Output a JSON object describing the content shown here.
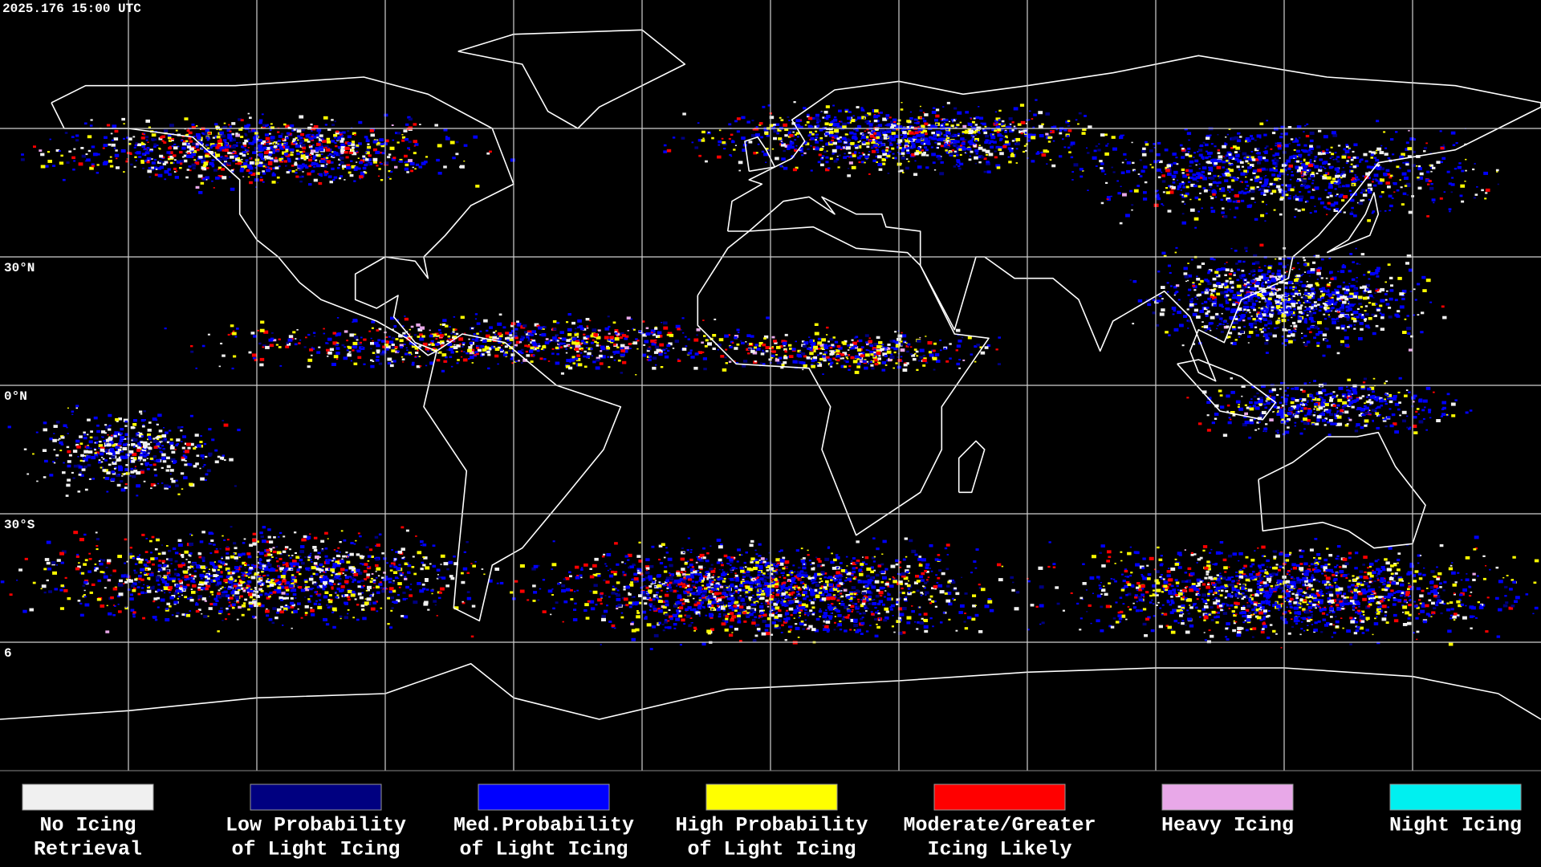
{
  "timestamp": "2025.176 15:00 UTC",
  "grid_labels": [
    "30°N",
    "0°N",
    "30°S",
    "6"
  ],
  "legend": [
    {
      "color": "#f0f0f0",
      "lines": [
        "No Icing",
        "Retrieval"
      ]
    },
    {
      "color": "#000080",
      "lines": [
        "Low Probability",
        "of Light Icing"
      ]
    },
    {
      "color": "#0000ff",
      "lines": [
        "Med.Probability",
        "of Light Icing"
      ]
    },
    {
      "color": "#ffff00",
      "lines": [
        "High Probability",
        "of Light Icing"
      ]
    },
    {
      "color": "#ff0000",
      "lines": [
        "Moderate/Greater",
        "Icing Likely"
      ]
    },
    {
      "color": "#e8a8e8",
      "lines": [
        "Heavy Icing"
      ]
    },
    {
      "color": "#00f0f0",
      "lines": [
        "Night Icing"
      ]
    }
  ]
}
